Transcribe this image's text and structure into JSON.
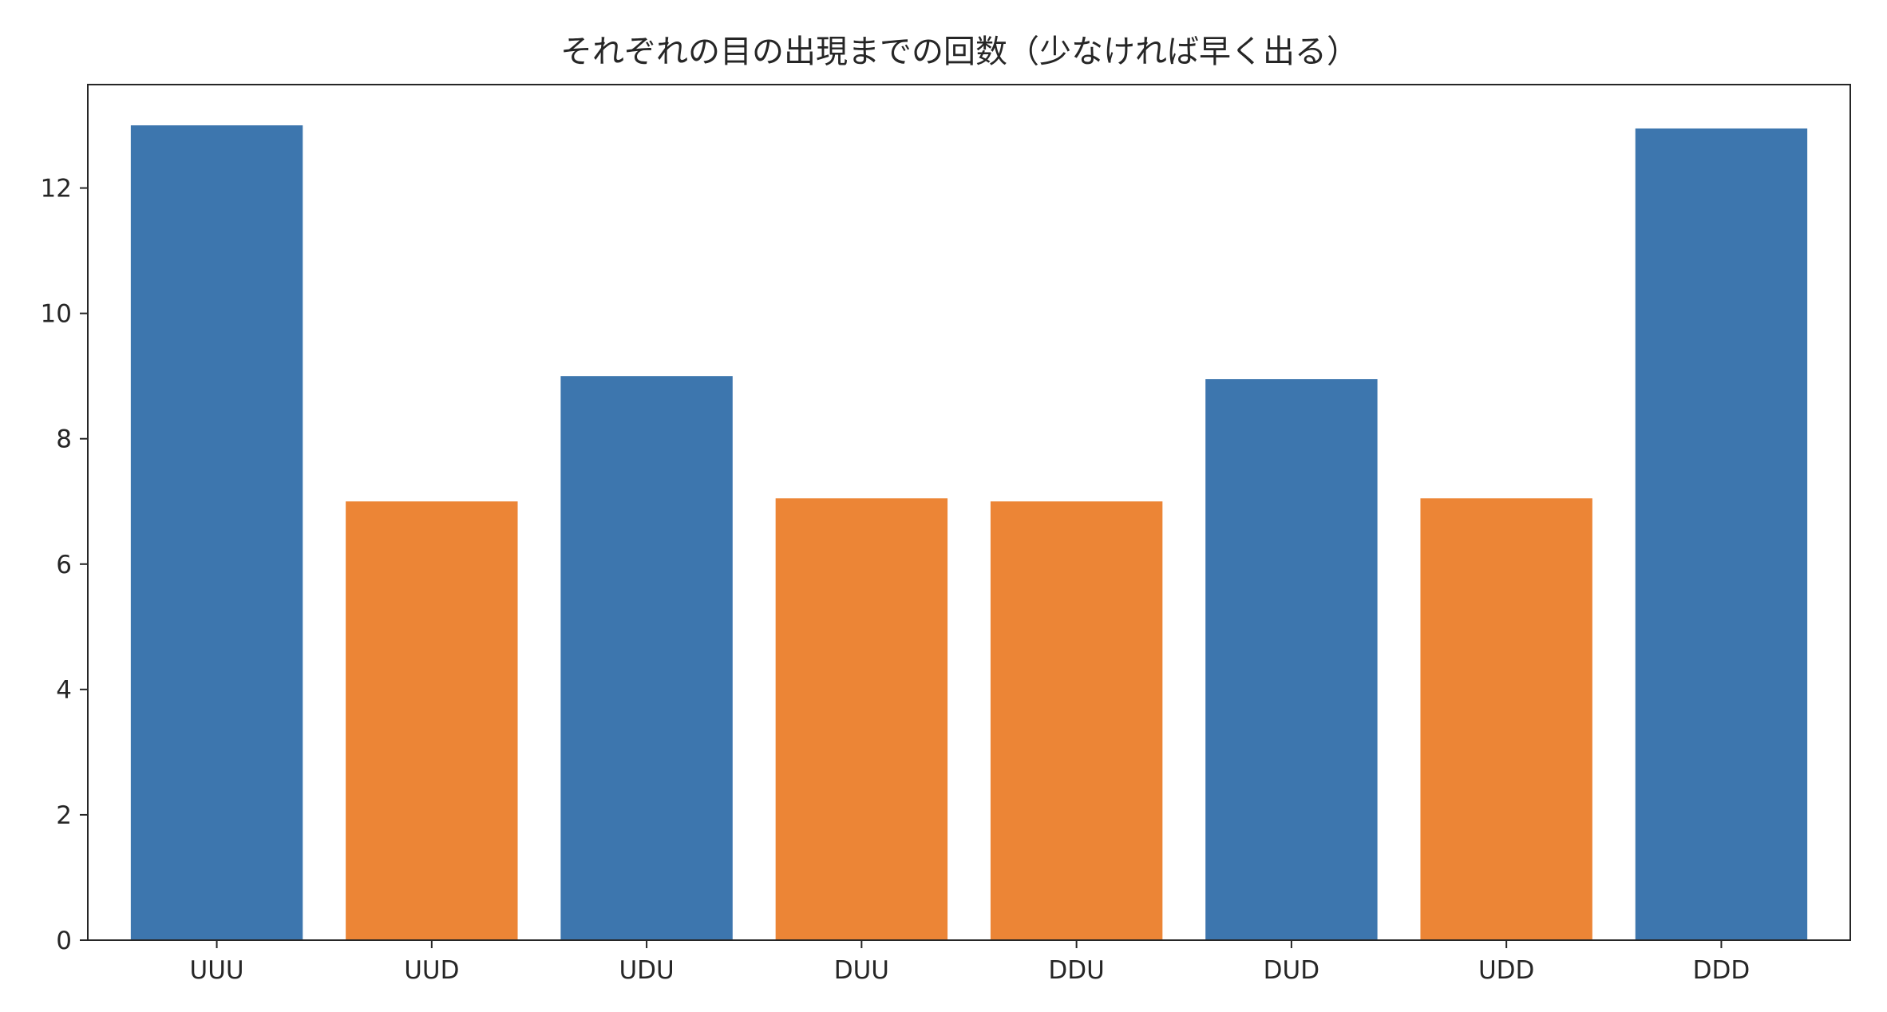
{
  "chart_data": {
    "type": "bar",
    "title": "それぞれの目の出現までの回数（少なければ早く出る）",
    "xlabel": "",
    "ylabel": "",
    "categories": [
      "UUU",
      "UUD",
      "UDU",
      "DUU",
      "DDU",
      "DUD",
      "UDD",
      "DDD"
    ],
    "values": [
      13.0,
      7.0,
      9.0,
      7.05,
      7.0,
      8.95,
      7.05,
      12.95
    ],
    "bar_colors": [
      "#3d76ae",
      "#ec8536",
      "#3d76ae",
      "#ec8536",
      "#ec8536",
      "#3d76ae",
      "#ec8536",
      "#3d76ae"
    ],
    "ylim": [
      0,
      13.65
    ],
    "yticks": [
      0,
      2,
      4,
      6,
      8,
      10,
      12
    ],
    "grid": false,
    "legend": "none"
  }
}
